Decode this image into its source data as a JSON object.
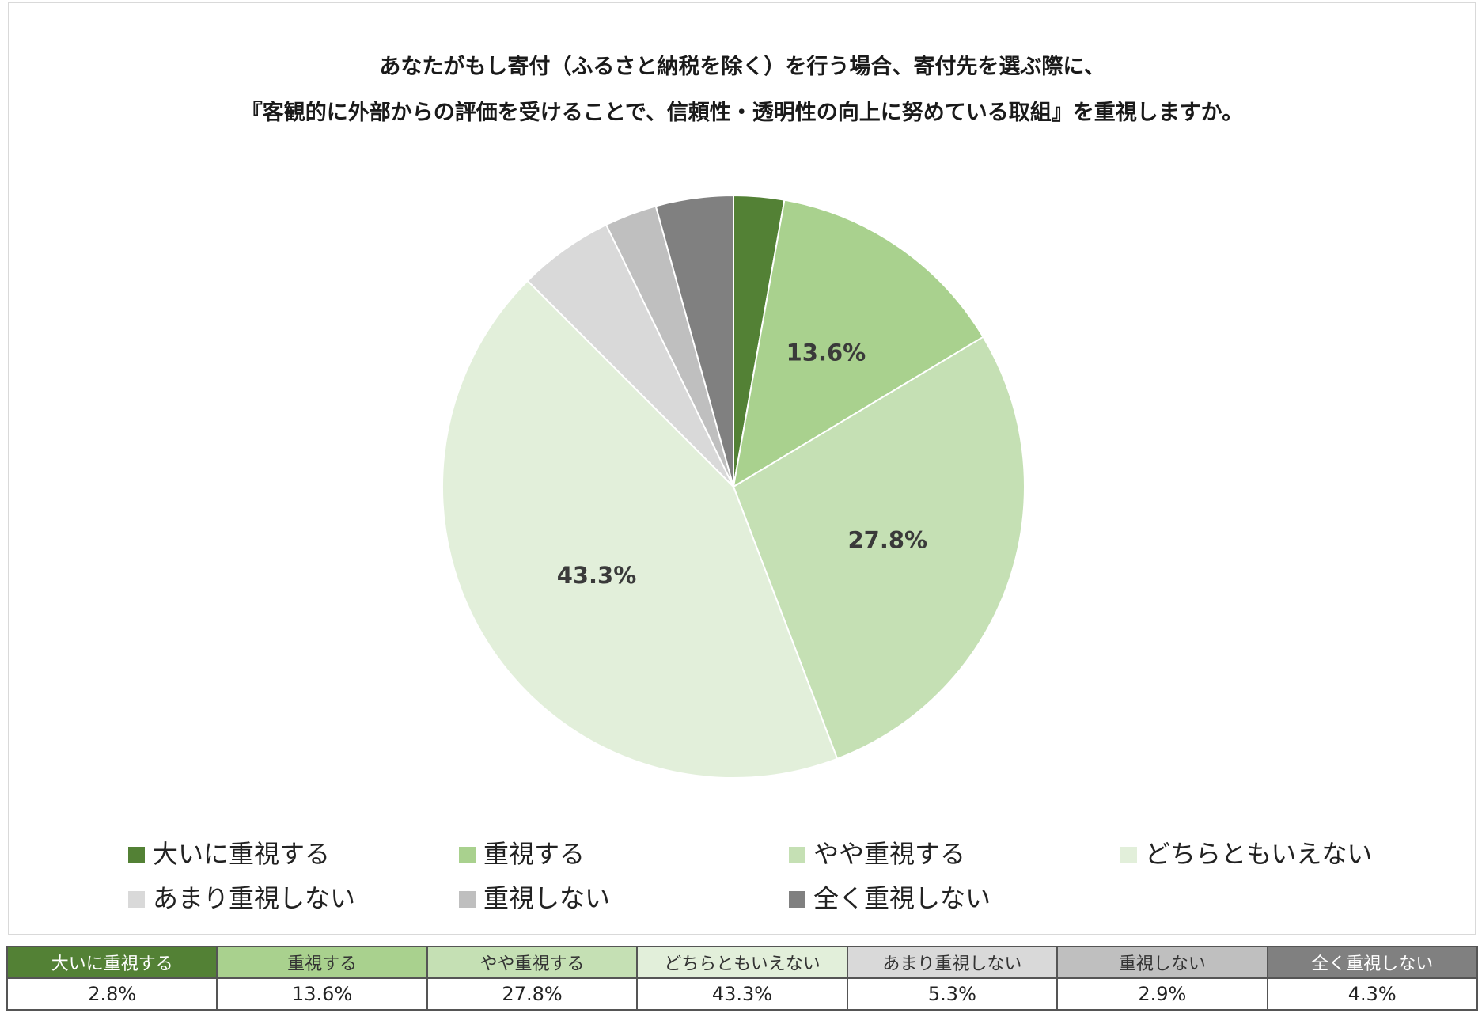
{
  "chart_data": {
    "type": "pie",
    "title_line1": "あなたがもし寄付（ふるさと納税を除く）を行う場合、寄付先を選ぶ際に、",
    "title_line2": "『客観的に外部からの評価を受けることで、信頼性・透明性の向上に努めている取組』を重視しますか。",
    "categories": [
      "大いに重視する",
      "重視する",
      "やや重視する",
      "どちらともいえない",
      "あまり重視しない",
      "重視しない",
      "全く重視しない"
    ],
    "values": [
      2.8,
      13.6,
      27.8,
      43.3,
      5.3,
      2.9,
      4.3
    ],
    "value_labels": [
      "2.8%",
      "13.6%",
      "27.8%",
      "43.3%",
      "5.3%",
      "2.9%",
      "4.3%"
    ],
    "slice_labels_shown": [
      false,
      true,
      true,
      true,
      false,
      false,
      false
    ],
    "colors": [
      "#538135",
      "#a9d18e",
      "#c5e0b4",
      "#e2efda",
      "#d9d9d9",
      "#bfbfbf",
      "#808080"
    ],
    "header_text_colors": [
      "#ffffff",
      "#333333",
      "#333333",
      "#333333",
      "#333333",
      "#333333",
      "#ffffff"
    ],
    "start_angle": "12 o'clock",
    "direction": "clockwise",
    "legend_position": "bottom"
  }
}
